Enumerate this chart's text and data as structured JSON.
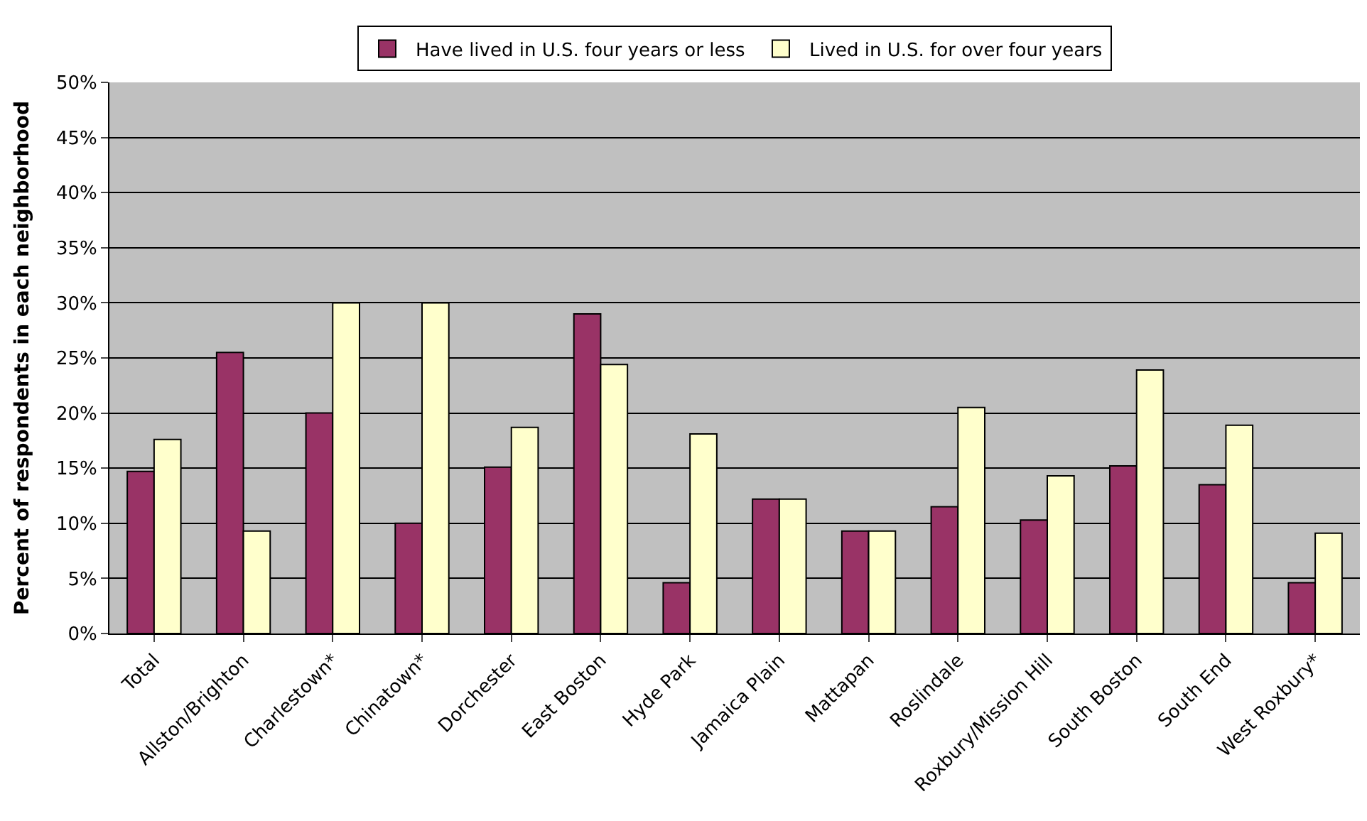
{
  "chart_data": {
    "type": "bar",
    "ylabel": "Percent of respondents in each neighborhood",
    "categories": [
      "Total",
      "Allston/Brighton",
      "Charlestown*",
      "Chinatown*",
      "Dorchester",
      "East Boston",
      "Hyde Park",
      "Jamaica Plain",
      "Mattapan",
      "Roslindale",
      "Roxbury/Mission Hill",
      "South Boston",
      "South End",
      "West Roxbury*"
    ],
    "series": [
      {
        "name": "Have lived in U.S. four years or less",
        "color": "#993366",
        "values": [
          14.7,
          25.5,
          20,
          10,
          15.1,
          29.0,
          4.6,
          12.2,
          9.3,
          11.5,
          10.3,
          15.2,
          13.5,
          4.6
        ]
      },
      {
        "name": "Lived in U.S. for over four years",
        "color": "#ffffcc",
        "values": [
          17.6,
          9.3,
          30,
          30,
          18.7,
          24.4,
          18.1,
          12.2,
          9.3,
          20.5,
          14.3,
          23.9,
          18.9,
          9.1
        ]
      }
    ],
    "ylim": [
      0,
      50
    ],
    "yticks": [
      {
        "value": 0,
        "label": "0%"
      },
      {
        "value": 5,
        "label": "5%"
      },
      {
        "value": 10,
        "label": "10%"
      },
      {
        "value": 15,
        "label": "15%"
      },
      {
        "value": 20,
        "label": "20%"
      },
      {
        "value": 25,
        "label": "25%"
      },
      {
        "value": 30,
        "label": "30%"
      },
      {
        "value": 35,
        "label": "35%"
      },
      {
        "value": 40,
        "label": "40%"
      },
      {
        "value": 45,
        "label": "45%"
      },
      {
        "value": 50,
        "label": "50%"
      }
    ],
    "grid": "y",
    "legend": "top"
  }
}
